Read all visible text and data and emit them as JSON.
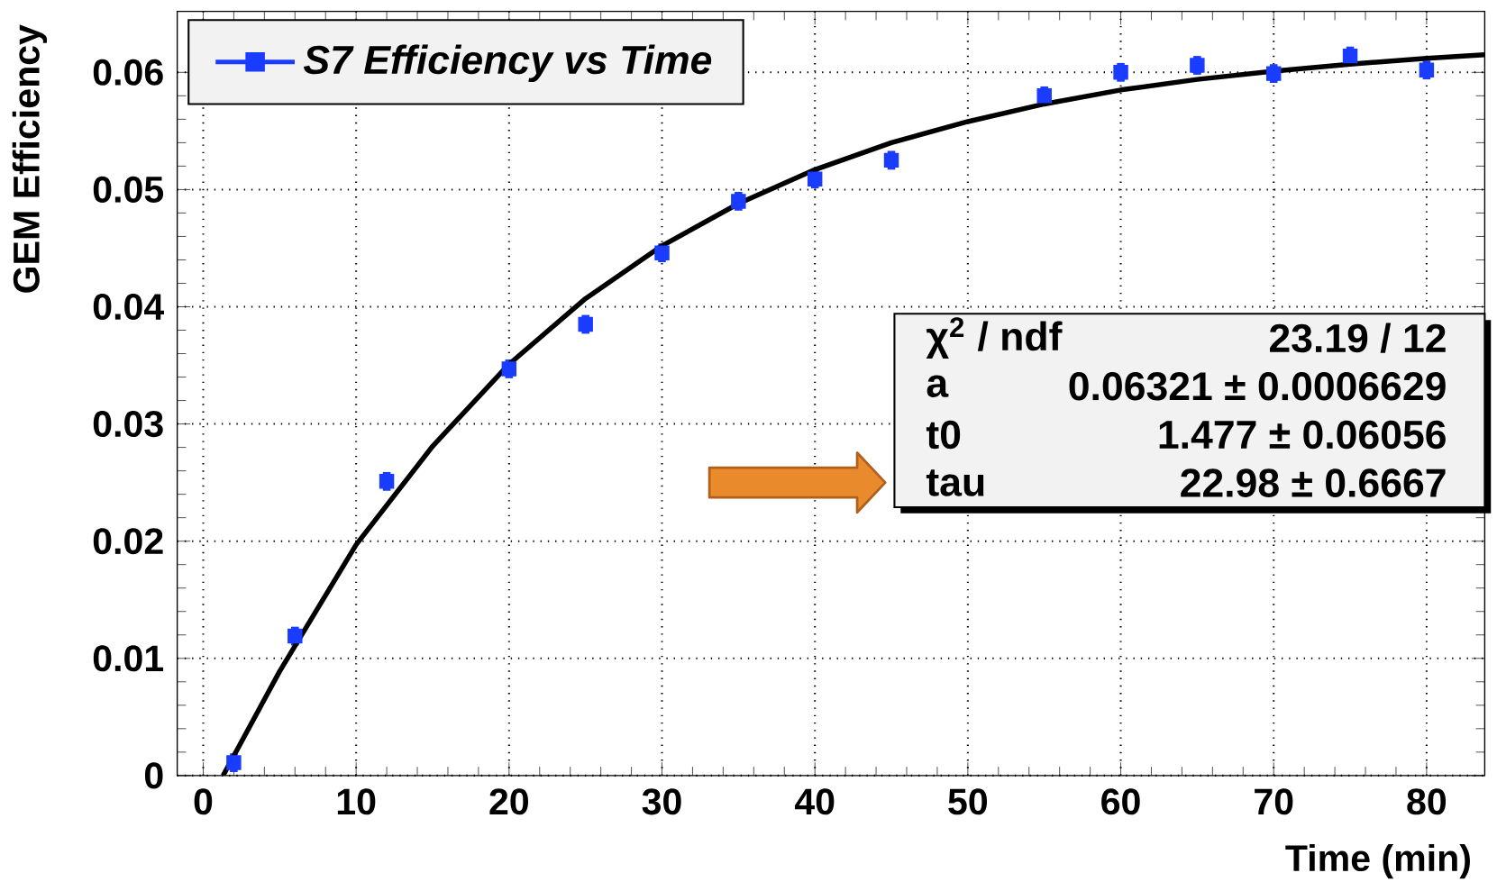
{
  "chart_data": {
    "type": "scatter",
    "xlabel": "Time (min)",
    "ylabel": "GEM Efficiency",
    "xlim": [
      -1.7,
      83.8
    ],
    "ylim": [
      0,
      0.0652
    ],
    "xticks": [
      0,
      10,
      20,
      30,
      40,
      50,
      60,
      70,
      80
    ],
    "yticks": [
      0,
      0.01,
      0.02,
      0.03,
      0.04,
      0.05,
      0.06
    ],
    "grid": true,
    "legend": "top left",
    "series": [
      {
        "name": "*S7 Efficiency vs Time*",
        "marker": "square",
        "color": "#1a3cff",
        "x": [
          2,
          6,
          12,
          20,
          25,
          30,
          35,
          40,
          45,
          55,
          60,
          65,
          70,
          75,
          80
        ],
        "values": [
          0.0011,
          0.0119,
          0.0251,
          0.0347,
          0.0385,
          0.0446,
          0.049,
          0.0509,
          0.0525,
          0.058,
          0.06,
          0.0606,
          0.0599,
          0.0614,
          0.0602
        ],
        "errors": [
          0.0008,
          0.0008,
          0.0008,
          0.0008,
          0.0008,
          0.0008,
          0.0008,
          0.0008,
          0.0008,
          0.0008,
          0.0008,
          0.0008,
          0.0008,
          0.0008,
          0.0008
        ]
      },
      {
        "type": "line",
        "color": "#000000",
        "x": [
          1.3,
          5,
          10,
          15,
          20,
          25,
          30,
          35,
          40,
          45,
          50,
          55,
          60,
          65,
          70,
          75,
          80,
          83.8
        ],
        "values": [
          0,
          0.0089,
          0.0197,
          0.0281,
          0.0351,
          0.0407,
          0.0452,
          0.0488,
          0.0517,
          0.054,
          0.0558,
          0.0573,
          0.0585,
          0.0594,
          0.0601,
          0.0607,
          0.0612,
          0.0615
        ]
      }
    ],
    "annotations": [
      "χ$^{2}$ / ndf",
      "23.19 / 12",
      "a",
      "0.06321 ± 0.0006629",
      "t0",
      "1.477 ± 0.06056",
      "tau",
      "22.98 ± 0.6667"
    ]
  }
}
